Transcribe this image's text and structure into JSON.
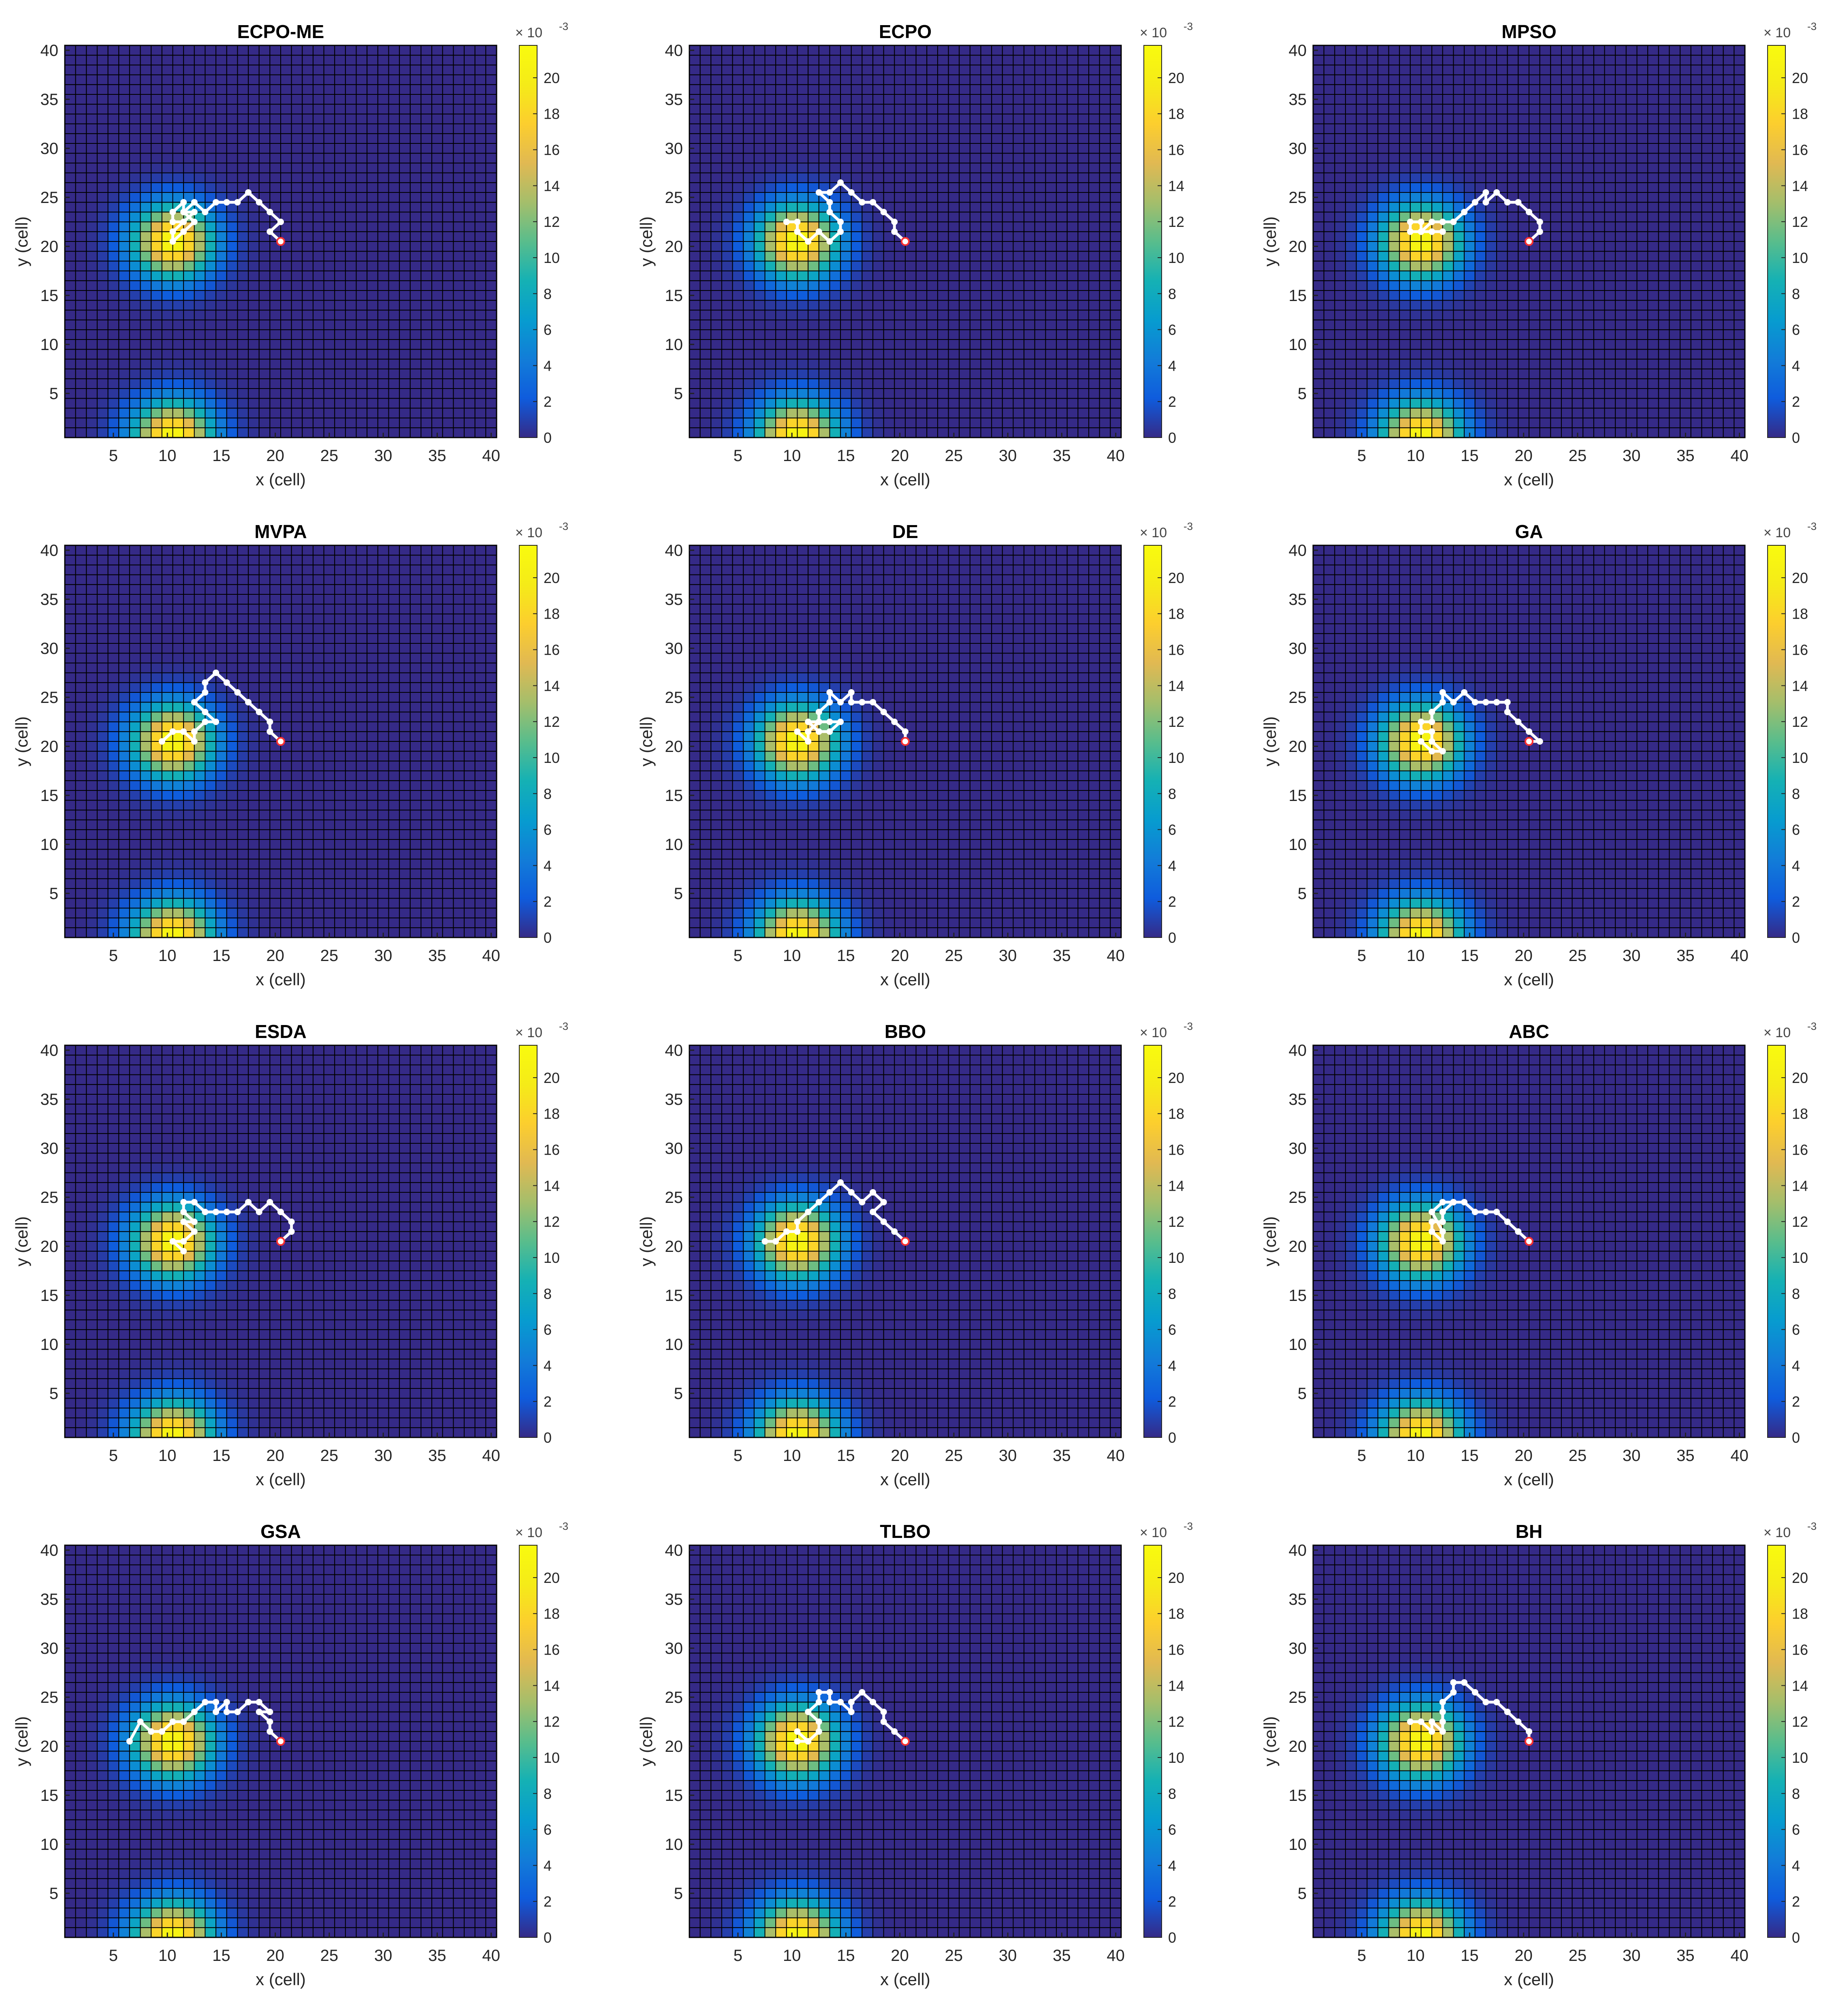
{
  "shared": {
    "xlabel": "x (cell)",
    "ylabel": "y (cell)",
    "xlim": [
      0.5,
      40.5
    ],
    "ylim": [
      0.5,
      40.5
    ],
    "xticks": [
      5,
      10,
      15,
      20,
      25,
      30,
      35,
      40
    ],
    "yticks": [
      5,
      10,
      15,
      20,
      25,
      30,
      35,
      40
    ],
    "grid_size": [
      40,
      40
    ],
    "colormap": "parula",
    "colorbar": {
      "range": [
        0,
        21.8
      ],
      "ticks": [
        0,
        2,
        4,
        6,
        8,
        10,
        12,
        14,
        16,
        18,
        20
      ],
      "exponent_base": "× 10",
      "exponent_power": "-3"
    },
    "field": {
      "description_of_values": "probability map, two gaussian peaks",
      "peaks": [
        {
          "cx": 10.5,
          "cy": 20.5,
          "amplitude": 21.5,
          "sigma": 2.6
        },
        {
          "cx": 10.5,
          "cy": 0.5,
          "amplitude": 21.5,
          "sigma": 2.6
        }
      ]
    },
    "colors": {
      "path": "#ffffff",
      "start_marker": "#ff3030",
      "grid_line": "#000000",
      "low": "#352a87",
      "high": "#f9fb0e"
    }
  },
  "chart_data": [
    {
      "type": "heatmap",
      "title": "ECPO-ME",
      "path": [
        [
          20.5,
          20.5
        ],
        [
          19.5,
          21.5
        ],
        [
          20.5,
          22.5
        ],
        [
          19.5,
          23.5
        ],
        [
          18.5,
          24.5
        ],
        [
          17.5,
          25.5
        ],
        [
          16.5,
          24.5
        ],
        [
          15.5,
          24.5
        ],
        [
          14.5,
          24.5
        ],
        [
          13.5,
          23.5
        ],
        [
          12.5,
          24.5
        ],
        [
          11.5,
          23.5
        ],
        [
          12.5,
          22.5
        ],
        [
          11.5,
          21.5
        ],
        [
          10.5,
          20.5
        ],
        [
          10.5,
          21.5
        ],
        [
          11.5,
          22.5
        ],
        [
          10.5,
          22.5
        ],
        [
          10.5,
          23.5
        ],
        [
          11.5,
          24.5
        ],
        [
          11.5,
          23.5
        ],
        [
          12.5,
          23.5
        ],
        [
          11.5,
          22.5
        ]
      ]
    },
    {
      "type": "heatmap",
      "title": "ECPO",
      "path": [
        [
          20.5,
          20.5
        ],
        [
          19.5,
          21.5
        ],
        [
          19.5,
          22.5
        ],
        [
          18.5,
          23.5
        ],
        [
          17.5,
          24.5
        ],
        [
          16.5,
          24.5
        ],
        [
          15.5,
          25.5
        ],
        [
          14.5,
          26.5
        ],
        [
          13.5,
          25.5
        ],
        [
          12.5,
          25.5
        ],
        [
          13.5,
          24.5
        ],
        [
          13.5,
          23.5
        ],
        [
          14.5,
          22.5
        ],
        [
          14.5,
          21.5
        ],
        [
          13.5,
          20.5
        ],
        [
          12.5,
          21.5
        ],
        [
          11.5,
          20.5
        ],
        [
          10.5,
          21.5
        ],
        [
          10.5,
          22.5
        ],
        [
          9.5,
          22.5
        ]
      ]
    },
    {
      "type": "heatmap",
      "title": "MPSO",
      "path": [
        [
          20.5,
          20.5
        ],
        [
          21.5,
          21.5
        ],
        [
          21.5,
          22.5
        ],
        [
          20.5,
          23.5
        ],
        [
          19.5,
          24.5
        ],
        [
          18.5,
          24.5
        ],
        [
          17.5,
          25.5
        ],
        [
          16.5,
          24.5
        ],
        [
          16.5,
          25.5
        ],
        [
          15.5,
          24.5
        ],
        [
          14.5,
          23.5
        ],
        [
          13.5,
          22.5
        ],
        [
          12.5,
          22.5
        ],
        [
          11.5,
          22.5
        ],
        [
          10.5,
          21.5
        ],
        [
          10.5,
          22.5
        ],
        [
          9.5,
          22.5
        ],
        [
          9.5,
          21.5
        ],
        [
          10.5,
          21.5
        ],
        [
          11.5,
          21.5
        ],
        [
          12.5,
          21.5
        ]
      ]
    },
    {
      "type": "heatmap",
      "title": "MVPA",
      "path": [
        [
          20.5,
          20.5
        ],
        [
          19.5,
          21.5
        ],
        [
          19.5,
          22.5
        ],
        [
          18.5,
          23.5
        ],
        [
          17.5,
          24.5
        ],
        [
          16.5,
          25.5
        ],
        [
          15.5,
          26.5
        ],
        [
          14.5,
          27.5
        ],
        [
          13.5,
          26.5
        ],
        [
          13.5,
          25.5
        ],
        [
          12.5,
          24.5
        ],
        [
          13.5,
          23.5
        ],
        [
          14.5,
          22.5
        ],
        [
          13.5,
          22.5
        ],
        [
          12.5,
          21.5
        ],
        [
          12.5,
          20.5
        ],
        [
          11.5,
          21.5
        ],
        [
          10.5,
          21.5
        ],
        [
          9.5,
          20.5
        ]
      ]
    },
    {
      "type": "heatmap",
      "title": "DE",
      "path": [
        [
          20.5,
          20.5
        ],
        [
          20.5,
          21.5
        ],
        [
          19.5,
          22.5
        ],
        [
          18.5,
          23.5
        ],
        [
          17.5,
          24.5
        ],
        [
          16.5,
          24.5
        ],
        [
          15.5,
          24.5
        ],
        [
          15.5,
          25.5
        ],
        [
          14.5,
          24.5
        ],
        [
          13.5,
          25.5
        ],
        [
          13.5,
          24.5
        ],
        [
          12.5,
          23.5
        ],
        [
          12.5,
          22.5
        ],
        [
          11.5,
          22.5
        ],
        [
          12.5,
          21.5
        ],
        [
          13.5,
          21.5
        ],
        [
          14.5,
          22.5
        ],
        [
          13.5,
          22.5
        ],
        [
          12.5,
          22.5
        ],
        [
          11.5,
          21.5
        ],
        [
          11.5,
          20.5
        ],
        [
          10.5,
          21.5
        ]
      ]
    },
    {
      "type": "heatmap",
      "title": "GA",
      "path": [
        [
          20.5,
          20.5
        ],
        [
          21.5,
          20.5
        ],
        [
          20.5,
          21.5
        ],
        [
          19.5,
          22.5
        ],
        [
          18.5,
          23.5
        ],
        [
          18.5,
          24.5
        ],
        [
          17.5,
          24.5
        ],
        [
          16.5,
          24.5
        ],
        [
          15.5,
          24.5
        ],
        [
          14.5,
          25.5
        ],
        [
          13.5,
          24.5
        ],
        [
          12.5,
          25.5
        ],
        [
          12.5,
          24.5
        ],
        [
          11.5,
          23.5
        ],
        [
          11.5,
          22.5
        ],
        [
          10.5,
          22.5
        ],
        [
          10.5,
          21.5
        ],
        [
          11.5,
          21.5
        ],
        [
          11.5,
          20.5
        ],
        [
          12.5,
          19.5
        ],
        [
          11.5,
          19.5
        ],
        [
          10.5,
          20.5
        ]
      ]
    },
    {
      "type": "heatmap",
      "title": "ESDA",
      "path": [
        [
          20.5,
          20.5
        ],
        [
          21.5,
          21.5
        ],
        [
          21.5,
          22.5
        ],
        [
          20.5,
          23.5
        ],
        [
          19.5,
          24.5
        ],
        [
          18.5,
          23.5
        ],
        [
          17.5,
          24.5
        ],
        [
          16.5,
          23.5
        ],
        [
          15.5,
          23.5
        ],
        [
          14.5,
          23.5
        ],
        [
          13.5,
          23.5
        ],
        [
          12.5,
          24.5
        ],
        [
          11.5,
          24.5
        ],
        [
          11.5,
          23.5
        ],
        [
          12.5,
          22.5
        ],
        [
          11.5,
          22.5
        ],
        [
          12.5,
          21.5
        ],
        [
          11.5,
          20.5
        ],
        [
          10.5,
          20.5
        ],
        [
          11.5,
          19.5
        ]
      ]
    },
    {
      "type": "heatmap",
      "title": "BBO",
      "path": [
        [
          20.5,
          20.5
        ],
        [
          19.5,
          21.5
        ],
        [
          18.5,
          22.5
        ],
        [
          17.5,
          23.5
        ],
        [
          18.5,
          24.5
        ],
        [
          17.5,
          25.5
        ],
        [
          16.5,
          24.5
        ],
        [
          15.5,
          25.5
        ],
        [
          14.5,
          26.5
        ],
        [
          13.5,
          25.5
        ],
        [
          12.5,
          24.5
        ],
        [
          11.5,
          23.5
        ],
        [
          10.5,
          22.5
        ],
        [
          10.5,
          21.5
        ],
        [
          9.5,
          21.5
        ],
        [
          8.5,
          20.5
        ],
        [
          7.5,
          20.5
        ]
      ]
    },
    {
      "type": "heatmap",
      "title": "ABC",
      "path": [
        [
          20.5,
          20.5
        ],
        [
          19.5,
          21.5
        ],
        [
          18.5,
          22.5
        ],
        [
          17.5,
          23.5
        ],
        [
          16.5,
          23.5
        ],
        [
          15.5,
          23.5
        ],
        [
          14.5,
          24.5
        ],
        [
          13.5,
          24.5
        ],
        [
          12.5,
          23.5
        ],
        [
          12.5,
          22.5
        ],
        [
          11.5,
          22.5
        ],
        [
          11.5,
          21.5
        ],
        [
          12.5,
          20.5
        ],
        [
          12.5,
          21.5
        ],
        [
          11.5,
          23.5
        ],
        [
          12.5,
          24.5
        ],
        [
          13.5,
          24.5
        ],
        [
          12.5,
          23.5
        ]
      ]
    },
    {
      "type": "heatmap",
      "title": "GSA",
      "path": [
        [
          20.5,
          20.5
        ],
        [
          19.5,
          21.5
        ],
        [
          19.5,
          22.5
        ],
        [
          18.5,
          23.5
        ],
        [
          19.5,
          23.5
        ],
        [
          18.5,
          24.5
        ],
        [
          17.5,
          24.5
        ],
        [
          16.5,
          23.5
        ],
        [
          15.5,
          23.5
        ],
        [
          15.5,
          24.5
        ],
        [
          14.5,
          23.5
        ],
        [
          14.5,
          24.5
        ],
        [
          13.5,
          24.5
        ],
        [
          12.5,
          23.5
        ],
        [
          11.5,
          22.5
        ],
        [
          10.5,
          22.5
        ],
        [
          9.5,
          21.5
        ],
        [
          8.5,
          21.5
        ],
        [
          7.5,
          22.5
        ],
        [
          6.5,
          20.5
        ]
      ]
    },
    {
      "type": "heatmap",
      "title": "TLBO",
      "path": [
        [
          20.5,
          20.5
        ],
        [
          19.5,
          21.5
        ],
        [
          18.5,
          22.5
        ],
        [
          18.5,
          23.5
        ],
        [
          17.5,
          24.5
        ],
        [
          16.5,
          25.5
        ],
        [
          15.5,
          24.5
        ],
        [
          15.5,
          23.5
        ],
        [
          14.5,
          24.5
        ],
        [
          13.5,
          24.5
        ],
        [
          13.5,
          25.5
        ],
        [
          12.5,
          25.5
        ],
        [
          12.5,
          24.5
        ],
        [
          11.5,
          23.5
        ],
        [
          12.5,
          22.5
        ],
        [
          12.5,
          21.5
        ],
        [
          11.5,
          20.5
        ],
        [
          10.5,
          21.5
        ],
        [
          11.5,
          20.5
        ],
        [
          10.5,
          20.5
        ]
      ]
    },
    {
      "type": "heatmap",
      "title": "BH",
      "path": [
        [
          20.5,
          20.5
        ],
        [
          20.5,
          21.5
        ],
        [
          19.5,
          22.5
        ],
        [
          18.5,
          23.5
        ],
        [
          17.5,
          24.5
        ],
        [
          16.5,
          24.5
        ],
        [
          15.5,
          25.5
        ],
        [
          14.5,
          26.5
        ],
        [
          13.5,
          26.5
        ],
        [
          13.5,
          25.5
        ],
        [
          12.5,
          24.5
        ],
        [
          12.5,
          23.5
        ],
        [
          12.5,
          22.5
        ],
        [
          12.5,
          21.5
        ],
        [
          11.5,
          22.5
        ],
        [
          11.5,
          21.5
        ],
        [
          10.5,
          22.5
        ],
        [
          9.5,
          22.5
        ]
      ]
    }
  ]
}
